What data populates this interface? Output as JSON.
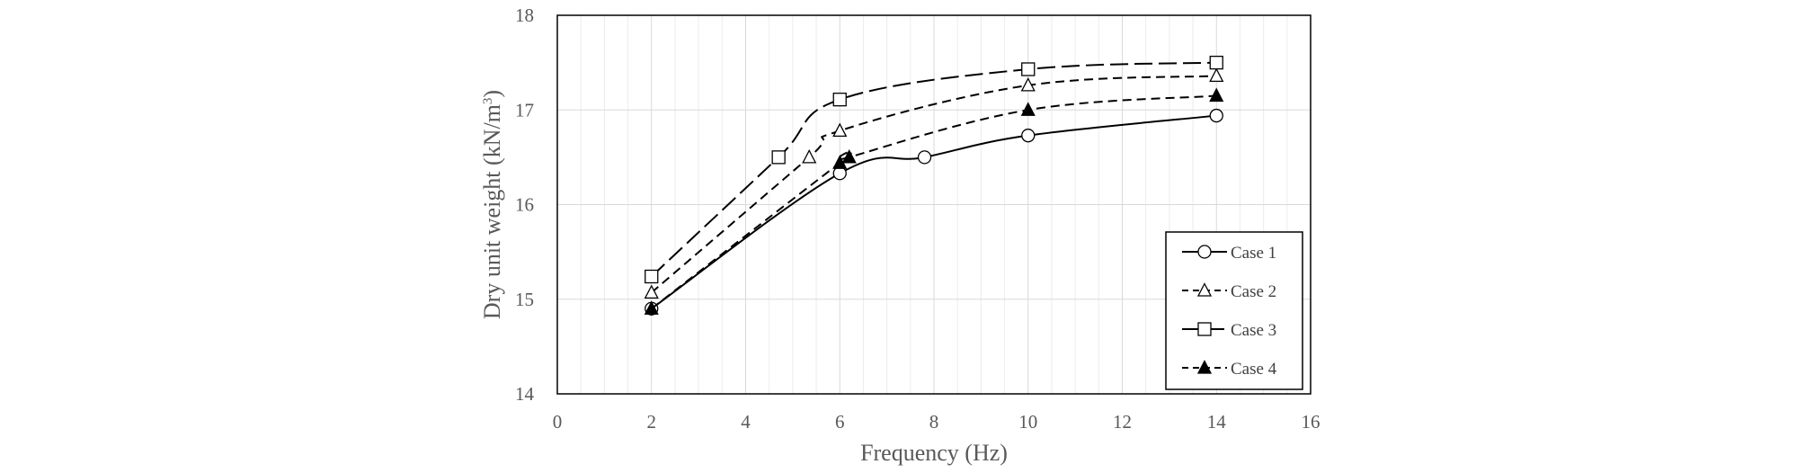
{
  "chart_data": {
    "type": "line",
    "title": "",
    "xlabel": "Frequency  (Hz)",
    "ylabel": "Dry unit weight (kN/m",
    "ylabel_superscript": "3",
    "ylabel_close": ")",
    "xlim": [
      0,
      16
    ],
    "ylim": [
      14,
      18
    ],
    "x_ticks": [
      0,
      2,
      4,
      6,
      8,
      10,
      12,
      14,
      16
    ],
    "y_ticks": [
      14,
      15,
      16,
      17,
      18
    ],
    "x_tick_labels": [
      "0",
      "2",
      "4",
      "6",
      "8",
      "10",
      "12",
      "14",
      "16"
    ],
    "y_tick_labels": [
      "14",
      "15",
      "16",
      "17",
      "18"
    ],
    "grid": true,
    "legend_position": "bottom-right",
    "series": [
      {
        "name": "Case 1",
        "marker": "circle-open",
        "line": "solid",
        "x": [
          2,
          6,
          7.8,
          10,
          14
        ],
        "y": [
          14.9,
          16.33,
          16.5,
          16.73,
          16.94
        ]
      },
      {
        "name": "Case 2",
        "marker": "triangle-open",
        "line": "dashed",
        "x": [
          2,
          5.35,
          6,
          10,
          14
        ],
        "y": [
          15.07,
          16.5,
          16.78,
          17.26,
          17.36
        ]
      },
      {
        "name": "Case 3",
        "marker": "square-open",
        "line": "longdash",
        "x": [
          2,
          4.7,
          6,
          10,
          14
        ],
        "y": [
          15.24,
          16.5,
          17.11,
          17.43,
          17.5
        ]
      },
      {
        "name": "Case 4",
        "marker": "triangle-filled",
        "line": "dashed",
        "x": [
          2,
          6,
          6.2,
          10,
          14
        ],
        "y": [
          14.9,
          16.44,
          16.5,
          17.0,
          17.15
        ]
      }
    ]
  },
  "colors": {
    "line": "#000000",
    "major_grid": "#d9d9d9",
    "minor_grid": "#ececec",
    "frame": "#000000",
    "text": "#595959"
  }
}
